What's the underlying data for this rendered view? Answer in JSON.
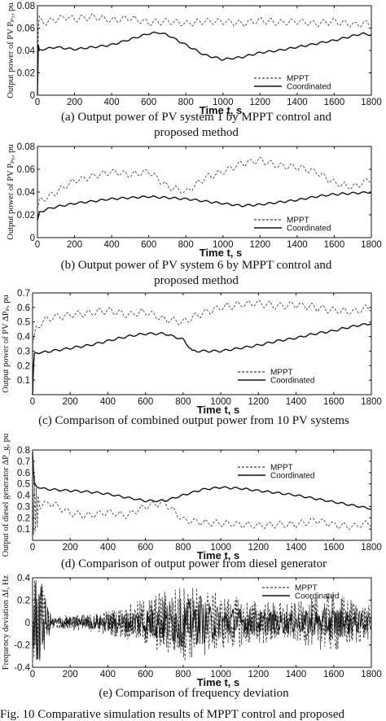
{
  "chart_data": [
    {
      "type": "line",
      "caption": [
        "(a) Output power of PV system  1 by MPPT control and",
        "proposed method"
      ],
      "xlabel": "Time  t, s",
      "ylabel": "Output power of PV Pₚ₁, pu",
      "xlim": [
        0,
        1800
      ],
      "ylim": [
        0,
        0.08
      ],
      "x_ticks": [
        0,
        200,
        400,
        600,
        800,
        1000,
        1200,
        1400,
        1600,
        1800
      ],
      "y_ticks": [
        0,
        0.02,
        0.04,
        0.06,
        0.08
      ],
      "y_tick_labels": [
        "0",
        "0.02",
        "0.04",
        "0.06",
        "0.08"
      ],
      "legend": "lower-right",
      "series": [
        {
          "name": "MPPT",
          "style": "dashed",
          "x": [
            0,
            5,
            10,
            20,
            50,
            100,
            150,
            200,
            300,
            400,
            500,
            600,
            700,
            800,
            900,
            1000,
            1100,
            1200,
            1300,
            1400,
            1500,
            1600,
            1700,
            1800
          ],
          "y": [
            0,
            0.06,
            0.068,
            0.066,
            0.065,
            0.068,
            0.07,
            0.068,
            0.07,
            0.067,
            0.069,
            0.065,
            0.066,
            0.064,
            0.066,
            0.066,
            0.064,
            0.067,
            0.065,
            0.066,
            0.064,
            0.066,
            0.063,
            0.065
          ]
        },
        {
          "name": "Coordinated",
          "style": "solid",
          "x": [
            0,
            5,
            10,
            30,
            100,
            200,
            300,
            400,
            500,
            600,
            650,
            700,
            800,
            900,
            1000,
            1100,
            1200,
            1300,
            1400,
            1500,
            1600,
            1700,
            1750,
            1800
          ],
          "y": [
            0,
            0.045,
            0.04,
            0.041,
            0.043,
            0.041,
            0.043,
            0.045,
            0.05,
            0.055,
            0.056,
            0.054,
            0.045,
            0.036,
            0.032,
            0.034,
            0.038,
            0.04,
            0.043,
            0.046,
            0.049,
            0.053,
            0.055,
            0.054
          ]
        }
      ]
    },
    {
      "type": "line",
      "caption": [
        "(b) Output power of PV system  6 by MPPT control and",
        "proposed method"
      ],
      "xlabel": "Time  t, s",
      "ylabel": "Output power of PV Pₚ₆, pu",
      "xlim": [
        0,
        1800
      ],
      "ylim": [
        0,
        0.08
      ],
      "x_ticks": [
        0,
        200,
        400,
        600,
        800,
        1000,
        1200,
        1400,
        1600,
        1800
      ],
      "y_ticks": [
        0,
        0.02,
        0.04,
        0.06,
        0.08
      ],
      "y_tick_labels": [
        "0",
        "0.02",
        "0.04",
        "0.06",
        "0.08"
      ],
      "legend": "lower-right",
      "series": [
        {
          "name": "MPPT",
          "style": "dashed",
          "x": [
            0,
            10,
            50,
            100,
            200,
            300,
            400,
            500,
            600,
            700,
            800,
            900,
            1000,
            1100,
            1200,
            1300,
            1400,
            1500,
            1600,
            1700,
            1800
          ],
          "y": [
            0.025,
            0.032,
            0.035,
            0.04,
            0.05,
            0.054,
            0.058,
            0.055,
            0.058,
            0.045,
            0.04,
            0.052,
            0.058,
            0.065,
            0.068,
            0.063,
            0.062,
            0.058,
            0.048,
            0.044,
            0.052
          ]
        },
        {
          "name": "Coordinated",
          "style": "solid",
          "x": [
            0,
            10,
            50,
            100,
            200,
            300,
            400,
            500,
            600,
            700,
            800,
            900,
            1000,
            1100,
            1200,
            1300,
            1400,
            1500,
            1600,
            1700,
            1800
          ],
          "y": [
            0.015,
            0.022,
            0.025,
            0.027,
            0.03,
            0.032,
            0.034,
            0.035,
            0.036,
            0.035,
            0.034,
            0.032,
            0.03,
            0.028,
            0.029,
            0.031,
            0.033,
            0.036,
            0.038,
            0.039,
            0.04
          ]
        }
      ]
    },
    {
      "type": "line",
      "caption": [
        "(c) Comparison of combined output power from 10 PV systems"
      ],
      "xlabel": "Time  t, s",
      "ylabel": "Output power of PV  ΔPₚ, pu",
      "xlim": [
        0,
        1800
      ],
      "ylim": [
        0,
        0.7
      ],
      "x_ticks": [
        0,
        200,
        400,
        600,
        800,
        1000,
        1200,
        1400,
        1600,
        1800
      ],
      "y_ticks": [
        0.1,
        0.2,
        0.3,
        0.4,
        0.5,
        0.6,
        0.7
      ],
      "y_tick_labels": [
        "0.1",
        "0.2",
        "0.3",
        "0.4",
        "0.5",
        "0.6",
        "0.7"
      ],
      "legend": "lower-right",
      "series": [
        {
          "name": "MPPT",
          "style": "dashed",
          "x": [
            0,
            20,
            50,
            100,
            200,
            300,
            400,
            500,
            600,
            700,
            800,
            900,
            1000,
            1100,
            1200,
            1300,
            1400,
            1500,
            1600,
            1700,
            1800
          ],
          "y": [
            0.35,
            0.45,
            0.5,
            0.53,
            0.55,
            0.56,
            0.58,
            0.55,
            0.57,
            0.52,
            0.5,
            0.56,
            0.6,
            0.62,
            0.63,
            0.61,
            0.62,
            0.6,
            0.58,
            0.57,
            0.6
          ]
        },
        {
          "name": "Coordinated",
          "style": "solid",
          "x": [
            0,
            5,
            10,
            20,
            50,
            100,
            200,
            300,
            400,
            500,
            600,
            700,
            800,
            850,
            900,
            1000,
            1100,
            1200,
            1300,
            1400,
            1500,
            1600,
            1700,
            1800
          ],
          "y": [
            0,
            0.2,
            0.28,
            0.29,
            0.29,
            0.3,
            0.32,
            0.34,
            0.37,
            0.4,
            0.42,
            0.42,
            0.38,
            0.3,
            0.3,
            0.3,
            0.32,
            0.34,
            0.37,
            0.39,
            0.42,
            0.44,
            0.47,
            0.49
          ]
        }
      ]
    },
    {
      "type": "line",
      "caption": [
        "(d) Comparison of output power from diesel generator"
      ],
      "xlabel": "Time  t, s",
      "ylabel": "Output of diesel generator ΔP_g, pu",
      "xlim": [
        0,
        1800
      ],
      "ylim": [
        0,
        0.8
      ],
      "x_ticks": [
        0,
        200,
        400,
        600,
        800,
        1000,
        1200,
        1400,
        1600,
        1800
      ],
      "y_ticks": [
        0.1,
        0.2,
        0.3,
        0.4,
        0.5,
        0.6,
        0.7,
        0.8
      ],
      "y_tick_labels": [
        "0.1",
        "0.2",
        "0.3",
        "0.4",
        "0.5",
        "0.6",
        "0.7",
        "0.8"
      ],
      "legend": "top-right",
      "series": [
        {
          "name": "MPPT",
          "style": "dashed",
          "x": [
            0,
            5,
            10,
            15,
            20,
            25,
            30,
            40,
            50,
            100,
            200,
            300,
            400,
            500,
            600,
            700,
            800,
            900,
            1000,
            1100,
            1200,
            1300,
            1400,
            1500,
            1600,
            1700,
            1800
          ],
          "y": [
            0.7,
            0.05,
            0.55,
            0.05,
            0.45,
            0.1,
            0.4,
            0.3,
            0.32,
            0.33,
            0.24,
            0.22,
            0.25,
            0.22,
            0.3,
            0.34,
            0.18,
            0.16,
            0.15,
            0.14,
            0.13,
            0.14,
            0.14,
            0.18,
            0.14,
            0.12,
            0.16
          ]
        },
        {
          "name": "Coordinated",
          "style": "solid",
          "x": [
            0,
            5,
            10,
            20,
            50,
            100,
            200,
            300,
            400,
            500,
            600,
            700,
            800,
            900,
            1000,
            1100,
            1200,
            1300,
            1400,
            1500,
            1600,
            1700,
            1800
          ],
          "y": [
            0.78,
            0.6,
            0.5,
            0.48,
            0.46,
            0.45,
            0.44,
            0.43,
            0.41,
            0.38,
            0.35,
            0.35,
            0.4,
            0.45,
            0.47,
            0.46,
            0.44,
            0.42,
            0.4,
            0.37,
            0.34,
            0.31,
            0.28
          ]
        }
      ]
    },
    {
      "type": "line",
      "caption": [
        "(e) Comparison of frequency deviation"
      ],
      "xlabel": "Time  t, s",
      "ylabel": "Frequency deviation Δf, Hz",
      "xlim": [
        0,
        1800
      ],
      "ylim": [
        -0.4,
        0.4
      ],
      "x_ticks": [
        0,
        200,
        400,
        600,
        800,
        1000,
        1200,
        1400,
        1600,
        1800
      ],
      "y_ticks": [
        -0.4,
        -0.2,
        0,
        0.2,
        0.4
      ],
      "y_tick_labels": [
        "-0.4",
        "-0.2",
        "0",
        "0.2",
        "0.4"
      ],
      "legend": "top-right",
      "series": [
        {
          "name": "MPPT",
          "style": "dashed",
          "amplitude_envelope": {
            "x": [
              0,
              40,
              100,
              300,
              500,
              700,
              800,
              900,
              1000,
              1200,
              1400,
              1600,
              1800
            ],
            "y": [
              0.4,
              0.4,
              0.06,
              0.08,
              0.15,
              0.3,
              0.35,
              0.32,
              0.25,
              0.2,
              0.18,
              0.28,
              0.15
            ]
          }
        },
        {
          "name": "Coordinated",
          "style": "solid",
          "amplitude_envelope": {
            "x": [
              0,
              40,
              100,
              300,
              500,
              700,
              800,
              900,
              1000,
              1200,
              1400,
              1600,
              1800
            ],
            "y": [
              0.4,
              0.4,
              0.05,
              0.06,
              0.1,
              0.18,
              0.22,
              0.2,
              0.15,
              0.12,
              0.1,
              0.15,
              0.08
            ]
          }
        }
      ]
    }
  ],
  "figure_caption": "Fig. 10 Comparative simulation results of MPPT control and proposed"
}
